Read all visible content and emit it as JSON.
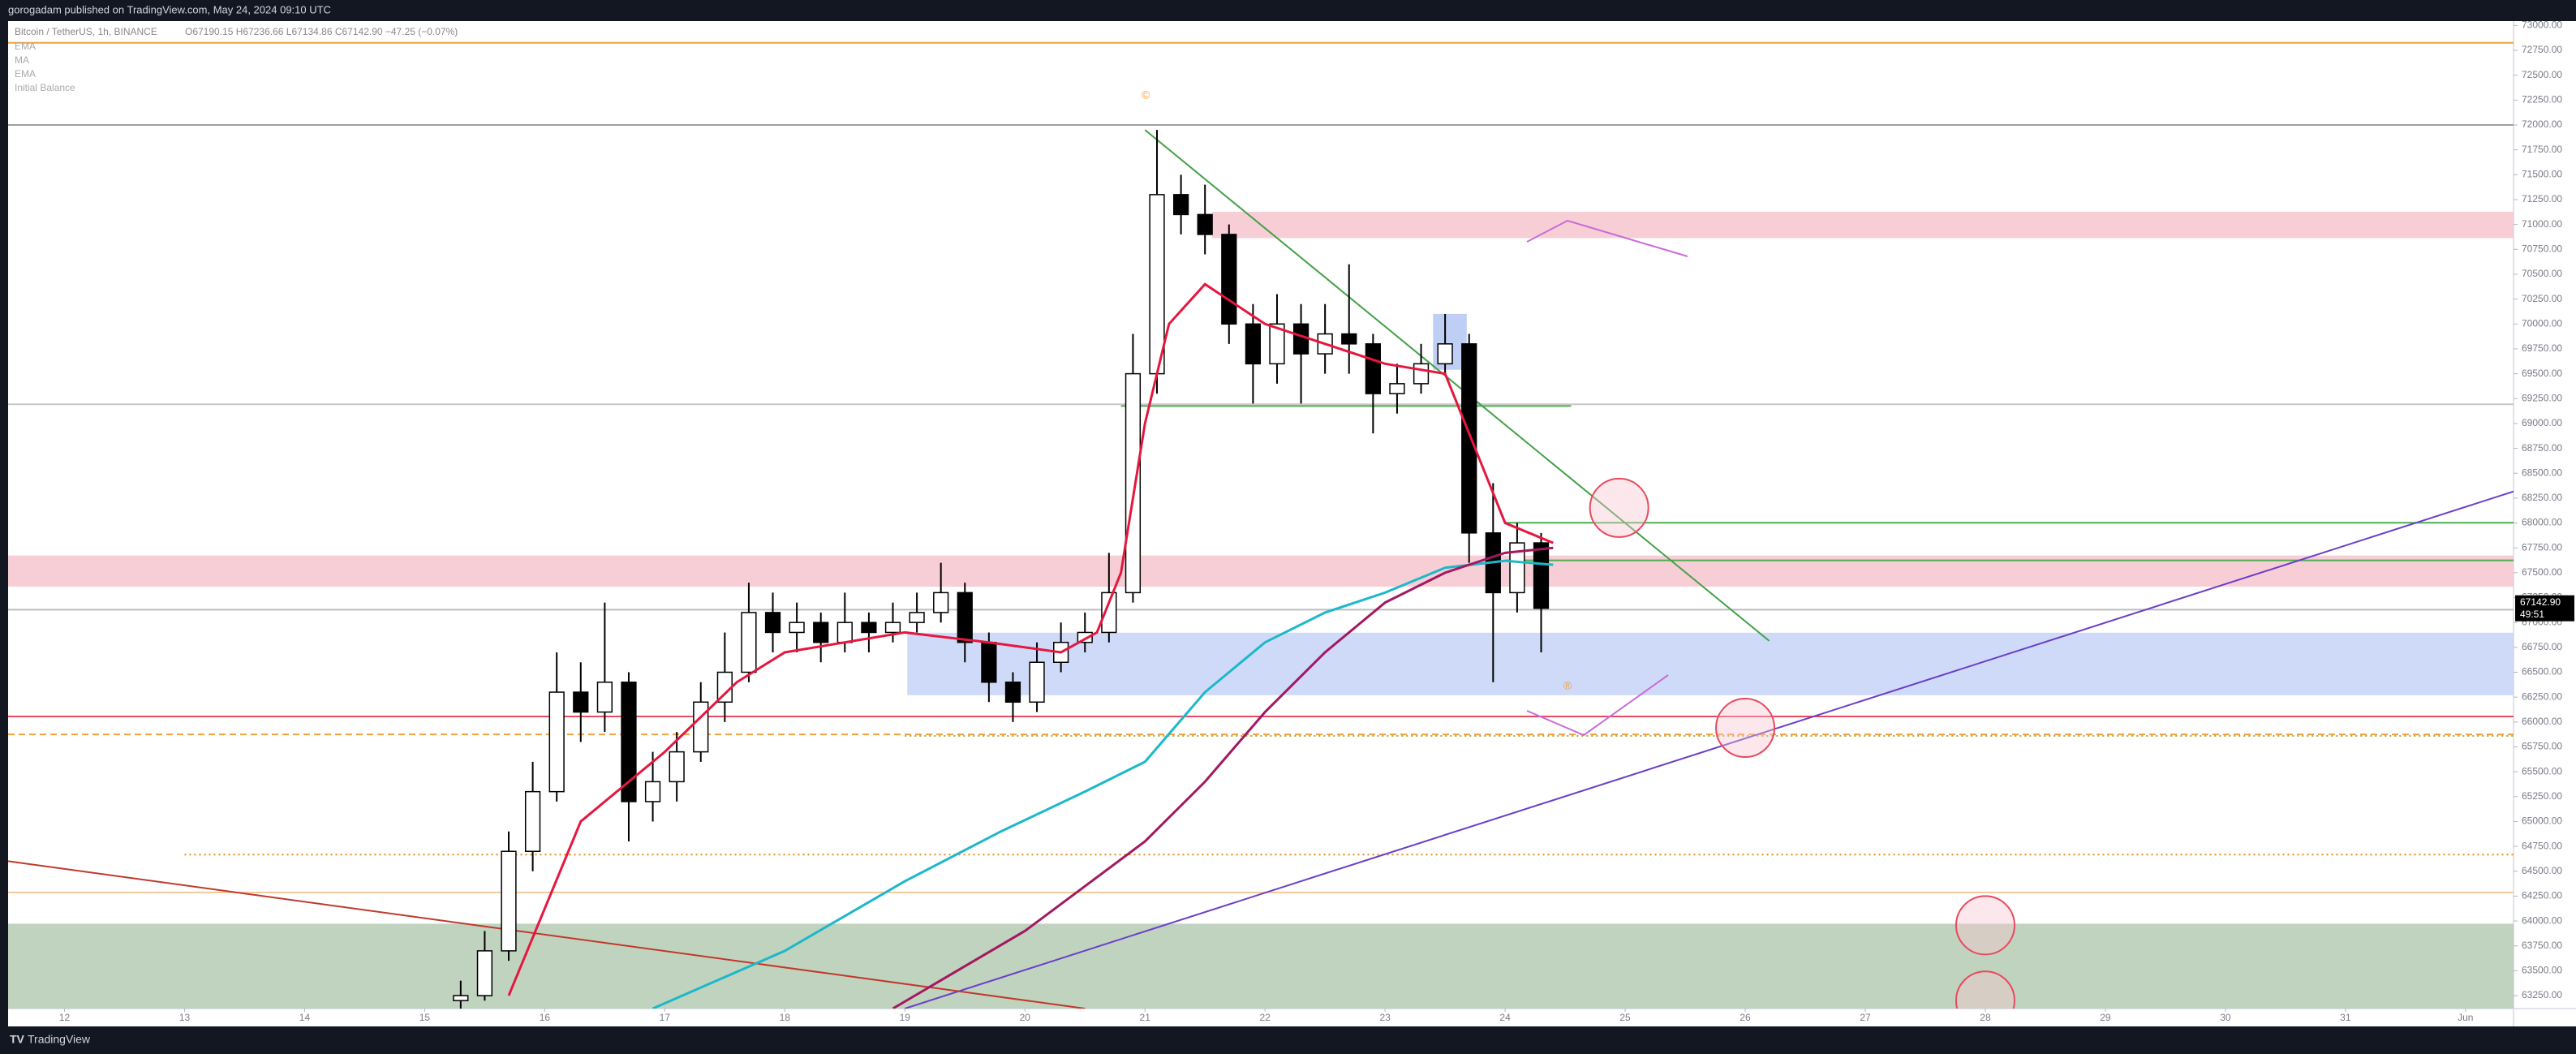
{
  "header": {
    "text": "gorogadam published on TradingView.com, May 24, 2024 09:10 UTC"
  },
  "legend": {
    "symbol": "Bitcoin / TetherUS, 1h, BINANCE",
    "ohlc": "O67190.15 H67236.66 L67134.86 C67142.90 −47.25 (−0.07%)",
    "indicators": [
      "EMA",
      "MA",
      "EMA",
      "Initial Balance"
    ]
  },
  "footer": {
    "brand": "TradingView"
  },
  "chart_data": {
    "type": "candlestick",
    "x": [
      15.3,
      15.5,
      15.7,
      15.9,
      16.1,
      16.3,
      16.5,
      16.7,
      16.9,
      17.1,
      17.3,
      17.5,
      17.7,
      17.9,
      18.1,
      18.3,
      18.5,
      18.7,
      18.9,
      19.1,
      19.3,
      19.5,
      19.7,
      19.9,
      20.1,
      20.3,
      20.5,
      20.7,
      20.9,
      21.1,
      21.3,
      21.5,
      21.7,
      21.9,
      22.1,
      22.3,
      22.5,
      22.7,
      22.9,
      23.1,
      23.3,
      23.5,
      23.7,
      23.9,
      24.1,
      24.3
    ],
    "open": [
      63200,
      63250,
      63700,
      64700,
      65300,
      66300,
      66100,
      66400,
      65200,
      65400,
      65700,
      66200,
      66500,
      67100,
      66900,
      67000,
      66800,
      67000,
      66900,
      67000,
      67100,
      67300,
      66800,
      66400,
      66200,
      66600,
      66800,
      66900,
      67300,
      69500,
      71300,
      71100,
      70900,
      70000,
      69600,
      70000,
      69700,
      69900,
      69800,
      69300,
      69400,
      69600,
      69800,
      67900,
      67300,
      67800
    ],
    "high": [
      63400,
      63900,
      64900,
      65600,
      66700,
      66600,
      67200,
      66500,
      65700,
      65900,
      66400,
      66900,
      67400,
      67300,
      67200,
      67100,
      67300,
      67100,
      67200,
      67300,
      67600,
      67400,
      66900,
      66500,
      66800,
      67000,
      67100,
      67700,
      69900,
      71950,
      71500,
      71400,
      71000,
      70200,
      70300,
      70200,
      70200,
      70600,
      69900,
      69600,
      69800,
      70100,
      69900,
      68400,
      68000,
      67900
    ],
    "low": [
      63100,
      63200,
      63600,
      64500,
      65200,
      65800,
      65900,
      64800,
      65000,
      65200,
      65600,
      66000,
      66400,
      66700,
      66700,
      66600,
      66700,
      66700,
      66800,
      66900,
      67000,
      66600,
      66200,
      66000,
      66100,
      66500,
      66700,
      66800,
      67200,
      69300,
      70900,
      70700,
      69800,
      69200,
      69400,
      69200,
      69500,
      69500,
      68900,
      69100,
      69300,
      69500,
      67600,
      66400,
      67100,
      66700
    ],
    "close": [
      63250,
      63700,
      64700,
      65300,
      66300,
      66100,
      66400,
      65200,
      65400,
      65700,
      66200,
      66500,
      67100,
      66900,
      67000,
      66800,
      67000,
      66900,
      67000,
      67100,
      67300,
      66800,
      66400,
      66200,
      66600,
      66800,
      66900,
      67300,
      69500,
      71300,
      71100,
      70900,
      70000,
      69600,
      70000,
      69700,
      69900,
      69800,
      69300,
      69400,
      69600,
      69800,
      67900,
      67300,
      67800,
      67142.9
    ],
    "up_color": "#ffffff",
    "down_color": "#000000",
    "series": [
      {
        "name": "EMA",
        "color": "#e5173f",
        "x": [
          15.7,
          16.3,
          17.0,
          17.6,
          18.0,
          19.0,
          19.7,
          20.3,
          20.6,
          20.8,
          21.0,
          21.2,
          21.5,
          22.0,
          22.5,
          23.0,
          23.5,
          23.8,
          24.0,
          24.4
        ],
        "values": [
          63250,
          65000,
          65700,
          66400,
          66700,
          66900,
          66800,
          66700,
          66900,
          67500,
          69000,
          70000,
          70400,
          70000,
          69800,
          69600,
          69500,
          68600,
          68000,
          67800
        ]
      },
      {
        "name": "MA",
        "color": "#1cb8c9",
        "x": [
          16.9,
          18.0,
          19.0,
          19.8,
          20.5,
          21.0,
          21.5,
          22.0,
          22.5,
          23.0,
          23.5,
          24.0,
          24.4
        ],
        "values": [
          63120,
          63700,
          64400,
          64900,
          65300,
          65600,
          66300,
          66800,
          67100,
          67300,
          67550,
          67620,
          67580
        ]
      },
      {
        "name": "EMA",
        "color": "#a3185f",
        "x": [
          18.9,
          20.0,
          21.0,
          21.5,
          22.0,
          22.5,
          23.0,
          23.5,
          24.0,
          24.4
        ],
        "values": [
          63120,
          63900,
          64800,
          65400,
          66100,
          66700,
          67200,
          67500,
          67700,
          67750
        ]
      }
    ],
    "zones": [
      {
        "x0": 21.56,
        "x1": 32.4,
        "y0": 70863,
        "y1": 71128,
        "color": "#f7c6cf"
      },
      {
        "x0": 11.53,
        "x1": 32.4,
        "y0": 67360,
        "y1": 67673,
        "color": "#f7c6cf"
      },
      {
        "x0": 19.02,
        "x1": 32.4,
        "y0": 66269,
        "y1": 66897,
        "color": "#c6d3f7"
      },
      {
        "x0": 23.4,
        "x1": 23.68,
        "y0": 69540,
        "y1": 70101,
        "color": "#b3c6f2"
      },
      {
        "x0": 11.53,
        "x1": 32.4,
        "y0": 63120,
        "y1": 63973,
        "color": "#b5cbb4"
      }
    ],
    "levels": [
      {
        "value": 72826,
        "x0": 11.53,
        "color": "#f0a23c",
        "style": "solid"
      },
      {
        "value": 72000,
        "x0": 11.53,
        "color": "#9e9e9e",
        "style": "solid"
      },
      {
        "value": 69193,
        "x0": 11.53,
        "color": "#c8c8c8",
        "style": "solid"
      },
      {
        "value": 69176,
        "x0": 20.8,
        "x1": 24.55,
        "color": "#4caf50",
        "style": "solid"
      },
      {
        "value": 68003,
        "x0": 24.0,
        "color": "#4caf50",
        "style": "solid"
      },
      {
        "value": 67624,
        "x0": 24.0,
        "color": "#4caf50",
        "style": "solid"
      },
      {
        "value": 67129,
        "x0": 11.53,
        "color": "#bdbdbd",
        "style": "solid"
      },
      {
        "value": 66056,
        "x0": 11.53,
        "color": "#e84a5f",
        "style": "solid"
      },
      {
        "value": 65875,
        "x0": 11.53,
        "color": "#f0a23c",
        "style": "dashed"
      },
      {
        "value": 65860,
        "x0": 19.0,
        "color": "#9bb34a",
        "style": "dotted"
      },
      {
        "value": 64667,
        "x0": 13.0,
        "color": "#e08a1e",
        "style": "dotted"
      },
      {
        "value": 64287,
        "x0": 11.53,
        "color": "#f5c99a",
        "style": "solid"
      }
    ],
    "trendlines": [
      {
        "x": [
          21.0,
          26.2
        ],
        "y": [
          71950,
          66815
        ],
        "color": "#43a047"
      },
      {
        "x": [
          19.0,
          32.4
        ],
        "y": [
          63120,
          68317
        ],
        "color": "#6a3fc9"
      },
      {
        "x": [
          11.53,
          20.5
        ],
        "y": [
          64601,
          63120
        ],
        "color": "#c0392b"
      }
    ],
    "circles": [
      {
        "x": 24.95,
        "y": 68152
      },
      {
        "x": 26.0,
        "y": 65941
      },
      {
        "x": 28.0,
        "y": 63957
      },
      {
        "x": 28.0,
        "y": 63200
      }
    ],
    "last_price": {
      "value": 67142.9,
      "label": "67142.90",
      "countdown": "49:51"
    },
    "xlim": [
      11.53,
      32.4
    ],
    "ylim": [
      63120,
      73044
    ],
    "xticks": [
      12,
      13,
      14,
      15,
      16,
      17,
      18,
      19,
      20,
      21,
      22,
      23,
      24,
      25,
      26,
      27,
      28,
      29,
      30,
      31,
      {
        "value": 32,
        "label": "Jun"
      }
    ],
    "yticks": [
      {
        "value": 63250,
        "label": "63250.00"
      },
      {
        "value": 63500,
        "label": "63500.00"
      },
      {
        "value": 63750,
        "label": "63750.00"
      },
      {
        "value": 64000,
        "label": "64000.00"
      },
      {
        "value": 64250,
        "label": "64250.00"
      },
      {
        "value": 64500,
        "label": "64500.00"
      },
      {
        "value": 64750,
        "label": "64750.00"
      },
      {
        "value": 65000,
        "label": "65000.00"
      },
      {
        "value": 65250,
        "label": "65250.00"
      },
      {
        "value": 65500,
        "label": "65500.00"
      },
      {
        "value": 65750,
        "label": "65750.00"
      },
      {
        "value": 66000,
        "label": "66000.00"
      },
      {
        "value": 66250,
        "label": "66250.00"
      },
      {
        "value": 66500,
        "label": "66500.00"
      },
      {
        "value": 66750,
        "label": "66750.00"
      },
      {
        "value": 67000,
        "label": "67000.00"
      },
      {
        "value": 67250,
        "label": "67250.00"
      },
      {
        "value": 67500,
        "label": "67500.00"
      },
      {
        "value": 67750,
        "label": "67750.00"
      },
      {
        "value": 68000,
        "label": "68000.00"
      },
      {
        "value": 68250,
        "label": "68250.00"
      },
      {
        "value": 68500,
        "label": "68500.00"
      },
      {
        "value": 68750,
        "label": "68750.00"
      },
      {
        "value": 69000,
        "label": "69000.00"
      },
      {
        "value": 69250,
        "label": "69250.00"
      },
      {
        "value": 69500,
        "label": "69500.00"
      },
      {
        "value": 69750,
        "label": "69750.00"
      },
      {
        "value": 70000,
        "label": "70000.00"
      },
      {
        "value": 70250,
        "label": "70250.00"
      },
      {
        "value": 70500,
        "label": "70500.00"
      },
      {
        "value": 70750,
        "label": "70750.00"
      },
      {
        "value": 71000,
        "label": "71000.00"
      },
      {
        "value": 71250,
        "label": "71250.00"
      },
      {
        "value": 71500,
        "label": "71500.00"
      },
      {
        "value": 71750,
        "label": "71750.00"
      },
      {
        "value": 72000,
        "label": "72000.00"
      },
      {
        "value": 72250,
        "label": "72250.00"
      },
      {
        "value": 72500,
        "label": "72500.00"
      },
      {
        "value": 72750,
        "label": "72750.00"
      },
      {
        "value": 73000,
        "label": "73000.00"
      }
    ],
    "grid": false
  }
}
